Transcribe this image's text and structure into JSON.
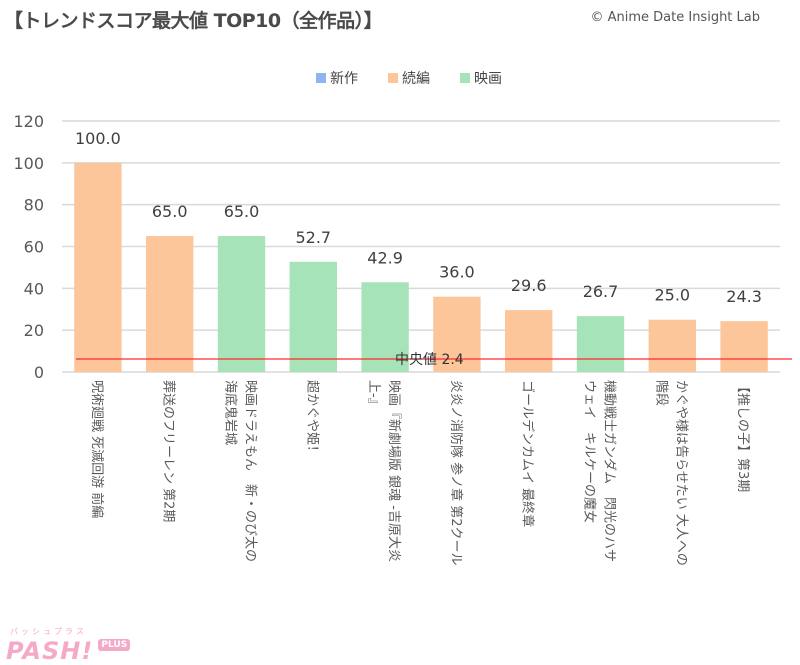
{
  "header": {
    "title": "【トレンドスコア最大値 TOP10（全作品）】",
    "credit": "© Anime Date Insight Lab"
  },
  "footer": {
    "logo_kana": "パッシュプラス",
    "logo_main": "PASH!",
    "logo_plus": "PLUS"
  },
  "chart_data": {
    "type": "bar",
    "title": "トレンドスコア最大値 TOP10（全作品）",
    "xlabel": "",
    "ylabel": "",
    "ylim": [
      0,
      120
    ],
    "yticks": [
      0,
      20,
      40,
      60,
      80,
      100,
      120
    ],
    "grid": true,
    "legend_position": "top-center",
    "legend": [
      {
        "name": "新作",
        "color": "#8fb4f2"
      },
      {
        "name": "続編",
        "color": "#fdc59a"
      },
      {
        "name": "映画",
        "color": "#a6e3b9"
      }
    ],
    "categories": [
      "呪術廻戦 死滅回游 前編",
      "葬送のフリーレン 第2期",
      "映画ドラえもん　新・のび太の海底鬼岩城",
      "超かぐや姫！",
      "映画『新劇場版 銀魂 -吉原大炎上-』",
      "炎炎ノ消防隊 参ノ章 第2クール",
      "ゴールデンカムイ 最終章",
      "機動戦士ガンダム　閃光のハサウェイ　キルケーの魔女",
      "かぐや様は告らせたい 大人への階段",
      "【推しの子】第3期"
    ],
    "label_lines": [
      [
        "呪術廻戦 死滅回游 前編"
      ],
      [
        "葬送のフリーレン 第2期"
      ],
      [
        "映画ドラえもん　新・のび太の",
        "海底鬼岩城"
      ],
      [
        "超かぐや姫！"
      ],
      [
        "映画『新劇場版 銀魂 -吉原大炎",
        "上-』"
      ],
      [
        "炎炎ノ消防隊 参ノ章 第2クール"
      ],
      [
        "ゴールデンカムイ 最終章"
      ],
      [
        "機動戦士ガンダム　閃光のハサ",
        "ウェイ　キルケーの魔女"
      ],
      [
        "かぐや様は告らせたい 大人への",
        "階段"
      ],
      [
        "【推しの子】第3期"
      ]
    ],
    "series_type": [
      "続編",
      "続編",
      "映画",
      "映画",
      "映画",
      "続編",
      "続編",
      "映画",
      "続編",
      "続編"
    ],
    "values": [
      100.0,
      65.0,
      65.0,
      52.7,
      42.9,
      36.0,
      29.6,
      26.7,
      25.0,
      24.3
    ],
    "value_labels": [
      "100.0",
      "65.0",
      "65.0",
      "52.7",
      "42.9",
      "36.0",
      "29.6",
      "26.7",
      "25.0",
      "24.3"
    ],
    "reference_line": {
      "label": "中央値 2.4",
      "value": 2.4,
      "color": "#ff2a2a"
    }
  }
}
